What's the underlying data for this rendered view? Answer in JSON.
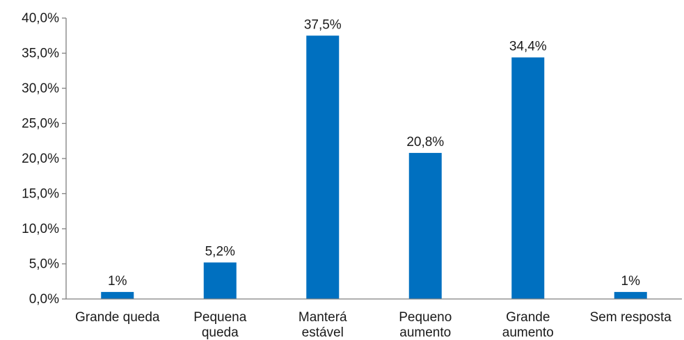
{
  "chart_data": {
    "type": "bar",
    "title": "",
    "xlabel": "",
    "ylabel": "",
    "categories": [
      [
        "Grande queda"
      ],
      [
        "Pequena",
        "queda"
      ],
      [
        "Manterá",
        "estável"
      ],
      [
        "Pequeno",
        "aumento"
      ],
      [
        "Grande",
        "aumento"
      ],
      [
        "Sem resposta"
      ]
    ],
    "values": [
      1.0,
      5.2,
      37.5,
      20.8,
      34.4,
      1.0
    ],
    "data_labels": [
      "1%",
      "5,2%",
      "37,5%",
      "20,8%",
      "34,4%",
      "1%"
    ],
    "ylim": [
      0,
      40
    ],
    "yticks": [
      0,
      5,
      10,
      15,
      20,
      25,
      30,
      35,
      40
    ],
    "ytick_labels": [
      "0,0%",
      "5,0%",
      "10,0%",
      "15,0%",
      "20,0%",
      "25,0%",
      "30,0%",
      "35,0%",
      "40,0%"
    ],
    "grid": false,
    "legend": "none",
    "bar_color": "#0070c0",
    "axis_color": "#7f7f7f"
  }
}
